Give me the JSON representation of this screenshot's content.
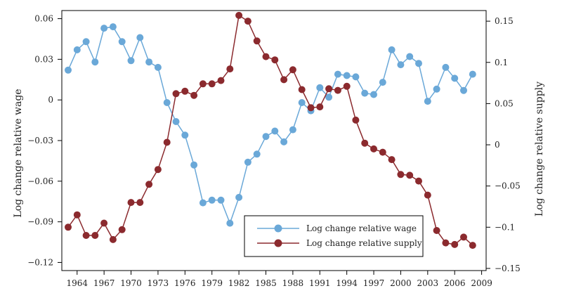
{
  "chart_data": {
    "type": "line",
    "x": [
      1963,
      1964,
      1965,
      1966,
      1967,
      1968,
      1969,
      1970,
      1971,
      1972,
      1973,
      1974,
      1975,
      1976,
      1977,
      1978,
      1979,
      1980,
      1981,
      1982,
      1983,
      1984,
      1985,
      1986,
      1987,
      1988,
      1989,
      1990,
      1991,
      1992,
      1993,
      1994,
      1995,
      1996,
      1997,
      1998,
      1999,
      2000,
      2001,
      2002,
      2003,
      2004,
      2005,
      2006,
      2007,
      2008
    ],
    "series": [
      {
        "name": "Log change relative wage",
        "axis": "left",
        "color": "#6aa8d8",
        "values": [
          0.022,
          0.037,
          0.043,
          0.028,
          0.053,
          0.054,
          0.043,
          0.029,
          0.046,
          0.028,
          0.024,
          -0.002,
          -0.016,
          -0.026,
          -0.048,
          -0.076,
          -0.074,
          -0.074,
          -0.091,
          -0.072,
          -0.046,
          -0.04,
          -0.027,
          -0.023,
          -0.031,
          -0.022,
          -0.002,
          -0.008,
          0.009,
          0.002,
          0.019,
          0.018,
          0.017,
          0.005,
          0.004,
          0.013,
          0.037,
          0.026,
          0.032,
          0.027,
          -0.001,
          0.008,
          0.024,
          0.016,
          0.007,
          0.019
        ]
      },
      {
        "name": "Log change relative supply",
        "axis": "right",
        "color": "#8b2a2e",
        "values": [
          -0.1,
          -0.085,
          -0.11,
          -0.11,
          -0.095,
          -0.115,
          -0.103,
          -0.07,
          -0.07,
          -0.048,
          -0.03,
          0.003,
          0.062,
          0.065,
          0.06,
          0.074,
          0.074,
          0.078,
          0.092,
          0.157,
          0.15,
          0.126,
          0.107,
          0.103,
          0.079,
          0.091,
          0.067,
          0.045,
          0.046,
          0.068,
          0.066,
          0.071,
          0.03,
          0.002,
          -0.005,
          -0.009,
          -0.018,
          -0.036,
          -0.037,
          -0.044,
          -0.061,
          -0.104,
          -0.119,
          -0.121,
          -0.112,
          -0.122
        ]
      }
    ],
    "xticks": [
      1964,
      1967,
      1970,
      1973,
      1976,
      1979,
      1982,
      1985,
      1988,
      1991,
      1994,
      1997,
      2000,
      2003,
      2006,
      2009
    ],
    "xlim": [
      1962.3,
      2009.5
    ],
    "ylabel_left": "Log change relative wage",
    "ylabel_right": "Log change relative supply",
    "ylim_left": [
      -0.126,
      0.066
    ],
    "yticks_left": [
      0.06,
      0.03,
      0,
      -0.03,
      -0.06,
      -0.09,
      -0.12
    ],
    "ytick_labels_left": [
      "0.06",
      "0.03",
      "0",
      "−0.03",
      "−0.06",
      "−0.09",
      "−0.12"
    ],
    "ylim_right": [
      -0.1526,
      0.1629
    ],
    "yticks_right": [
      0.15,
      0.1,
      0.05,
      0,
      -0.05,
      -0.1,
      -0.15
    ],
    "ytick_labels_right": [
      "0.15",
      "0.1",
      "0.05",
      "0",
      "−0.05",
      "−0.1",
      "−0.15"
    ],
    "grid": false,
    "legend_position": "bottom-right"
  }
}
